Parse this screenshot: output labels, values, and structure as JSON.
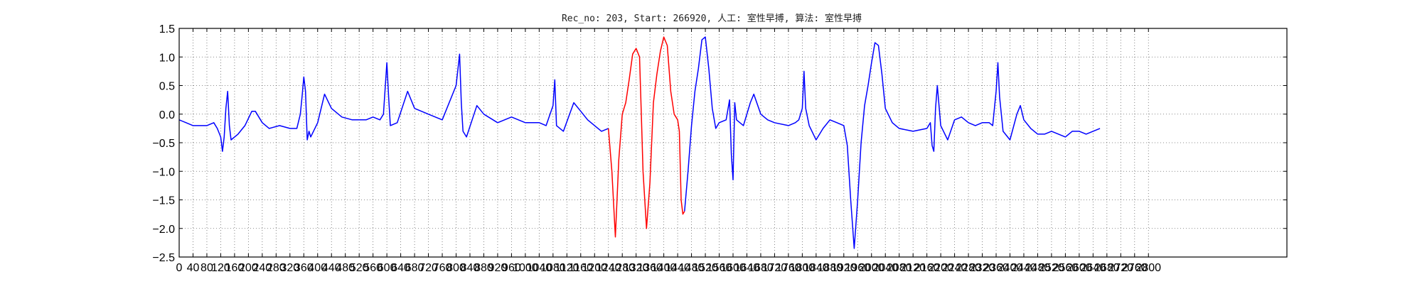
{
  "chart_data": {
    "type": "line",
    "title": "Rec_no: 203, Start: 266920, 人工: 室性早搏, 算法: 室性早搏",
    "xlabel": "",
    "ylabel": "",
    "xlim": [
      0,
      3200
    ],
    "ylim": [
      -2.5,
      1.5
    ],
    "grid": true,
    "x_ticks": [
      0,
      40,
      80,
      120,
      160,
      200,
      240,
      280,
      320,
      360,
      400,
      440,
      480,
      520,
      560,
      600,
      640,
      680,
      720,
      760,
      800,
      840,
      880,
      920,
      960,
      1000,
      1040,
      1080,
      1120,
      1160,
      1200,
      1240,
      1280,
      1320,
      1360,
      1400,
      1440,
      1480,
      1520,
      1560,
      1600,
      1640,
      1680,
      1720,
      1760,
      1800,
      1840,
      1880,
      1920,
      1960,
      2000,
      2040,
      2080,
      2120,
      2160,
      2200,
      2240,
      2280,
      2320,
      2360,
      2400,
      2440,
      2480,
      2520,
      2560,
      2600,
      2640,
      2680,
      2720,
      2760,
      2800
    ],
    "x_tick_labels": [
      "0",
      "40",
      "80",
      "120",
      "160",
      "200",
      "240",
      "280",
      "320",
      "360",
      "400",
      "440",
      "480",
      "520",
      "560",
      "600",
      "640",
      "680",
      "720",
      "760",
      "800",
      "840",
      "880",
      "920",
      "960",
      "1000",
      "1040",
      "1080",
      "1120",
      "1160",
      "1200",
      "1240",
      "1280",
      "1320",
      "1360",
      "1400",
      "1440",
      "1480",
      "1520",
      "1560",
      "1600",
      "1640",
      "1680",
      "1720",
      "1760",
      "1800",
      "1840",
      "1880",
      "1920",
      "1960",
      "2000",
      "2040",
      "2080",
      "2120",
      "2160",
      "2200",
      "2240",
      "2280",
      "2320",
      "2360",
      "2400",
      "2440",
      "2480",
      "2520",
      "2560",
      "2600",
      "2640",
      "2680",
      "2720",
      "2760",
      "2800"
    ],
    "y_ticks": [
      1.5,
      1.0,
      0.5,
      0.0,
      -0.5,
      -1.0,
      -1.5,
      -2.0,
      -2.5
    ],
    "y_tick_labels": [
      "1.5",
      "1.0",
      "0.5",
      "0.0",
      "−0.5",
      "−1.0",
      "−1.5",
      "−2.0",
      "−2.5"
    ],
    "series": [
      {
        "color": "#0000ff",
        "points": [
          [
            0,
            -0.1
          ],
          [
            20,
            -0.15
          ],
          [
            40,
            -0.2
          ],
          [
            60,
            -0.2
          ],
          [
            80,
            -0.2
          ],
          [
            100,
            -0.15
          ],
          [
            110,
            -0.25
          ],
          [
            120,
            -0.4
          ],
          [
            125,
            -0.65
          ],
          [
            130,
            -0.4
          ],
          [
            135,
            0.1
          ],
          [
            140,
            0.4
          ],
          [
            145,
            -0.2
          ],
          [
            150,
            -0.45
          ],
          [
            170,
            -0.35
          ],
          [
            190,
            -0.2
          ],
          [
            210,
            0.05
          ],
          [
            220,
            0.05
          ],
          [
            240,
            -0.15
          ],
          [
            260,
            -0.25
          ],
          [
            290,
            -0.2
          ],
          [
            320,
            -0.25
          ],
          [
            340,
            -0.25
          ],
          [
            350,
            0.0
          ],
          [
            355,
            0.3
          ],
          [
            360,
            0.65
          ],
          [
            365,
            0.4
          ],
          [
            370,
            -0.45
          ],
          [
            375,
            -0.3
          ],
          [
            380,
            -0.4
          ],
          [
            400,
            -0.15
          ],
          [
            420,
            0.35
          ],
          [
            440,
            0.1
          ],
          [
            470,
            -0.05
          ],
          [
            500,
            -0.1
          ],
          [
            540,
            -0.1
          ],
          [
            560,
            -0.05
          ],
          [
            580,
            -0.1
          ],
          [
            590,
            0.0
          ],
          [
            600,
            0.9
          ],
          [
            605,
            0.3
          ],
          [
            610,
            -0.2
          ],
          [
            630,
            -0.15
          ],
          [
            660,
            0.4
          ],
          [
            680,
            0.1
          ],
          [
            720,
            0.0
          ],
          [
            760,
            -0.1
          ],
          [
            800,
            0.5
          ],
          [
            810,
            1.05
          ],
          [
            815,
            0.2
          ],
          [
            820,
            -0.3
          ],
          [
            830,
            -0.4
          ],
          [
            860,
            0.15
          ],
          [
            880,
            0.0
          ],
          [
            920,
            -0.15
          ],
          [
            960,
            -0.05
          ],
          [
            1000,
            -0.15
          ],
          [
            1040,
            -0.15
          ],
          [
            1060,
            -0.2
          ],
          [
            1080,
            0.15
          ],
          [
            1085,
            0.6
          ],
          [
            1090,
            -0.2
          ],
          [
            1110,
            -0.3
          ],
          [
            1140,
            0.2
          ],
          [
            1160,
            0.05
          ],
          [
            1180,
            -0.1
          ],
          [
            1200,
            -0.2
          ],
          [
            1220,
            -0.3
          ],
          [
            1240,
            -0.25
          ]
        ]
      },
      {
        "color": "#ff0000",
        "points": [
          [
            1240,
            -0.25
          ],
          [
            1250,
            -1.0
          ],
          [
            1260,
            -2.15
          ],
          [
            1270,
            -0.8
          ],
          [
            1280,
            0.0
          ],
          [
            1290,
            0.2
          ],
          [
            1300,
            0.6
          ],
          [
            1310,
            1.05
          ],
          [
            1320,
            1.15
          ],
          [
            1330,
            1.0
          ],
          [
            1335,
            0.0
          ],
          [
            1340,
            -1.0
          ],
          [
            1350,
            -2.0
          ],
          [
            1360,
            -1.2
          ],
          [
            1370,
            0.2
          ],
          [
            1380,
            0.7
          ],
          [
            1390,
            1.1
          ],
          [
            1400,
            1.35
          ],
          [
            1410,
            1.2
          ],
          [
            1420,
            0.4
          ],
          [
            1430,
            0.0
          ],
          [
            1440,
            -0.1
          ],
          [
            1445,
            -0.3
          ],
          [
            1450,
            -1.5
          ],
          [
            1455,
            -1.75
          ],
          [
            1460,
            -1.7
          ]
        ]
      },
      {
        "color": "#0000ff",
        "points": [
          [
            1460,
            -1.7
          ],
          [
            1470,
            -1.0
          ],
          [
            1480,
            -0.2
          ],
          [
            1490,
            0.4
          ],
          [
            1500,
            0.8
          ],
          [
            1510,
            1.3
          ],
          [
            1520,
            1.35
          ],
          [
            1530,
            0.8
          ],
          [
            1540,
            0.1
          ],
          [
            1550,
            -0.25
          ],
          [
            1560,
            -0.15
          ],
          [
            1580,
            -0.1
          ],
          [
            1590,
            0.25
          ],
          [
            1595,
            -0.7
          ],
          [
            1600,
            -1.15
          ],
          [
            1605,
            0.2
          ],
          [
            1610,
            -0.1
          ],
          [
            1630,
            -0.2
          ],
          [
            1650,
            0.2
          ],
          [
            1660,
            0.35
          ],
          [
            1680,
            0.0
          ],
          [
            1700,
            -0.1
          ],
          [
            1720,
            -0.15
          ],
          [
            1760,
            -0.2
          ],
          [
            1780,
            -0.15
          ],
          [
            1790,
            -0.1
          ],
          [
            1800,
            0.1
          ],
          [
            1805,
            0.75
          ],
          [
            1810,
            0.1
          ],
          [
            1820,
            -0.2
          ],
          [
            1840,
            -0.45
          ],
          [
            1860,
            -0.25
          ],
          [
            1880,
            -0.1
          ],
          [
            1900,
            -0.15
          ],
          [
            1920,
            -0.2
          ],
          [
            1930,
            -0.55
          ],
          [
            1940,
            -1.5
          ],
          [
            1950,
            -2.35
          ],
          [
            1960,
            -1.5
          ],
          [
            1970,
            -0.5
          ],
          [
            1980,
            0.15
          ],
          [
            1990,
            0.5
          ],
          [
            2000,
            0.9
          ],
          [
            2010,
            1.25
          ],
          [
            2020,
            1.2
          ],
          [
            2030,
            0.7
          ],
          [
            2040,
            0.1
          ],
          [
            2060,
            -0.15
          ],
          [
            2080,
            -0.25
          ],
          [
            2120,
            -0.3
          ],
          [
            2160,
            -0.25
          ],
          [
            2170,
            -0.15
          ],
          [
            2175,
            -0.55
          ],
          [
            2180,
            -0.65
          ],
          [
            2185,
            0.1
          ],
          [
            2190,
            0.5
          ],
          [
            2200,
            -0.2
          ],
          [
            2220,
            -0.45
          ],
          [
            2240,
            -0.1
          ],
          [
            2260,
            -0.05
          ],
          [
            2280,
            -0.15
          ],
          [
            2300,
            -0.2
          ],
          [
            2320,
            -0.15
          ],
          [
            2340,
            -0.15
          ],
          [
            2350,
            -0.2
          ],
          [
            2360,
            0.4
          ],
          [
            2365,
            0.9
          ],
          [
            2370,
            0.3
          ],
          [
            2380,
            -0.3
          ],
          [
            2400,
            -0.45
          ],
          [
            2420,
            0.0
          ],
          [
            2430,
            0.15
          ],
          [
            2440,
            -0.1
          ],
          [
            2460,
            -0.25
          ],
          [
            2480,
            -0.35
          ],
          [
            2500,
            -0.35
          ],
          [
            2520,
            -0.3
          ],
          [
            2540,
            -0.35
          ],
          [
            2560,
            -0.4
          ],
          [
            2580,
            -0.3
          ],
          [
            2600,
            -0.3
          ],
          [
            2620,
            -0.35
          ],
          [
            2640,
            -0.3
          ],
          [
            2660,
            -0.25
          ]
        ]
      }
    ]
  }
}
